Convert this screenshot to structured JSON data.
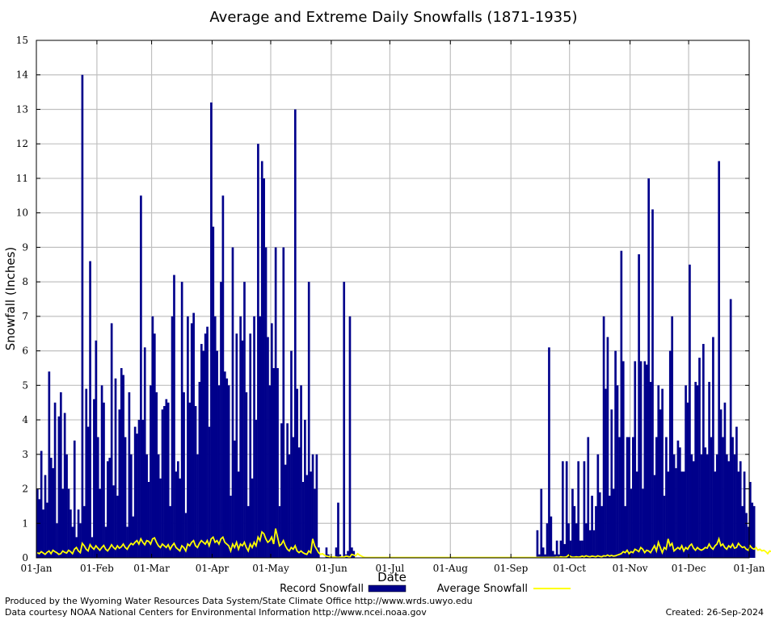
{
  "chart_data": {
    "type": "bar",
    "title": "Average and Extreme Daily Snowfalls (1871-1935)",
    "xlabel": "Date",
    "ylabel": "Snowfall (Inches)",
    "ylim": [
      0,
      15
    ],
    "yticks": [
      "0",
      "1",
      "2",
      "3",
      "4",
      "5",
      "6",
      "7",
      "8",
      "9",
      "10",
      "11",
      "12",
      "13",
      "14",
      "15"
    ],
    "xticks": [
      "01-Jan",
      "01-Feb",
      "01-Mar",
      "01-Apr",
      "01-May",
      "01-Jun",
      "01-Jul",
      "01-Aug",
      "01-Sep",
      "01-Oct",
      "01-Nov",
      "01-Dec",
      "01-Jan"
    ],
    "xtick_days": [
      1,
      32,
      60,
      91,
      121,
      152,
      182,
      213,
      244,
      274,
      305,
      335,
      366
    ],
    "xlim_days": [
      1,
      366
    ],
    "grid": true,
    "legend": "bottom-center",
    "series": [
      {
        "name": "Record Snowfall",
        "kind": "bar",
        "color": "#00008b",
        "x_start_day": 1,
        "values": [
          2.0,
          1.7,
          3.1,
          1.4,
          2.4,
          1.6,
          5.4,
          2.9,
          2.6,
          4.5,
          1.0,
          4.1,
          4.8,
          2.0,
          4.2,
          3.0,
          2.0,
          1.4,
          0.9,
          3.4,
          0.6,
          1.4,
          1.0,
          14.0,
          1.5,
          4.9,
          3.8,
          8.6,
          0.6,
          4.6,
          6.3,
          3.5,
          2.0,
          5.0,
          4.5,
          0.9,
          2.8,
          2.9,
          6.8,
          2.1,
          5.2,
          1.8,
          4.3,
          5.5,
          5.3,
          3.5,
          0.9,
          4.8,
          3.0,
          1.2,
          3.8,
          3.6,
          4.0,
          10.5,
          4.0,
          6.1,
          3.0,
          2.2,
          5.0,
          7.0,
          6.5,
          4.8,
          3.0,
          2.3,
          4.3,
          4.4,
          4.6,
          4.5,
          1.5,
          7.0,
          8.2,
          2.5,
          2.8,
          2.3,
          8.0,
          4.8,
          1.3,
          7.0,
          4.5,
          6.8,
          7.1,
          4.4,
          3.0,
          5.1,
          6.2,
          6.0,
          6.5,
          6.7,
          3.8,
          13.2,
          9.6,
          7.0,
          6.0,
          5.0,
          8.0,
          10.5,
          5.4,
          5.2,
          5.0,
          1.8,
          9.0,
          3.4,
          6.5,
          2.5,
          7.0,
          6.3,
          8.0,
          4.8,
          1.5,
          6.5,
          2.3,
          7.0,
          4.0,
          12.0,
          7.0,
          11.5,
          11.0,
          9.0,
          6.4,
          5.0,
          6.8,
          5.5,
          9.0,
          5.5,
          1.5,
          3.9,
          9.0,
          2.7,
          3.9,
          3.0,
          6.0,
          3.5,
          13.0,
          4.9,
          3.2,
          5.0,
          2.2,
          4.0,
          2.4,
          8.0,
          2.5,
          3.0,
          2.0,
          3.0,
          0.3,
          0.0,
          0.0,
          0.0,
          0.3,
          0.1,
          0.0,
          0.0,
          0.0,
          0.3,
          1.6,
          0.1,
          0.0,
          8.0,
          0.1,
          0.2,
          7.0,
          0.3,
          0.2,
          0.0,
          0.0,
          0.0,
          0.0,
          0.0,
          0.0,
          0.0,
          0.0,
          0.0,
          0.0,
          0.0,
          0.0,
          0.0,
          0.0,
          0.0,
          0.0,
          0.0,
          0.0,
          0.0,
          0.0,
          0.0,
          0.0,
          0.0,
          0.0,
          0.0,
          0.0,
          0.0,
          0.0,
          0.0,
          0.0,
          0.0,
          0.0,
          0.0,
          0.0,
          0.0,
          0.0,
          0.0,
          0.0,
          0.0,
          0.0,
          0.0,
          0.0,
          0.0,
          0.0,
          0.0,
          0.0,
          0.0,
          0.0,
          0.0,
          0.0,
          0.0,
          0.0,
          0.0,
          0.0,
          0.0,
          0.0,
          0.0,
          0.0,
          0.0,
          0.0,
          0.0,
          0.0,
          0.0,
          0.0,
          0.0,
          0.0,
          0.0,
          0.0,
          0.0,
          0.0,
          0.0,
          0.0,
          0.0,
          0.0,
          0.0,
          0.0,
          0.0,
          0.0,
          0.0,
          0.0,
          0.0,
          0.0,
          0.0,
          0.0,
          0.0,
          0.0,
          0.0,
          0.0,
          0.0,
          0.0,
          0.0,
          0.0,
          0.0,
          0.8,
          0.1,
          2.0,
          0.3,
          0.1,
          1.0,
          6.1,
          1.2,
          0.2,
          0.1,
          0.5,
          0.1,
          0.5,
          2.8,
          0.4,
          2.8,
          1.0,
          0.5,
          2.0,
          1.5,
          1.0,
          2.8,
          0.5,
          0.5,
          2.8,
          1.0,
          3.5,
          0.8,
          1.8,
          0.8,
          1.5,
          3.0,
          1.9,
          1.5,
          7.0,
          4.9,
          6.4,
          1.8,
          4.3,
          2.0,
          6.0,
          5.0,
          3.5,
          8.9,
          5.7,
          1.5,
          3.5,
          3.5,
          2.0,
          3.5,
          5.7,
          2.5,
          8.8,
          5.7,
          2.0,
          5.7,
          5.6,
          11.0,
          5.1,
          10.1,
          2.4,
          3.5,
          5.0,
          4.3,
          4.9,
          1.8,
          3.5,
          2.5,
          6.0,
          7.0,
          3.0,
          2.6,
          3.4,
          3.2,
          2.5,
          2.5,
          5.0,
          4.5,
          8.5,
          3.0,
          2.8,
          5.1,
          5.0,
          5.8,
          3.0,
          6.2,
          3.2,
          3.0,
          5.1,
          3.5,
          6.4,
          2.5,
          3.0,
          11.5,
          4.3,
          3.5,
          4.5,
          3.0,
          2.8,
          7.5,
          3.5,
          3.0,
          3.8,
          2.5,
          2.8,
          1.5,
          2.5,
          1.3,
          0.9,
          2.2,
          1.6,
          1.5
        ]
      },
      {
        "name": "Average Snowfall",
        "kind": "line",
        "color": "#ffff00",
        "x_start_day": 1,
        "values": [
          0.15,
          0.12,
          0.18,
          0.14,
          0.1,
          0.16,
          0.2,
          0.12,
          0.22,
          0.18,
          0.15,
          0.1,
          0.12,
          0.2,
          0.16,
          0.14,
          0.22,
          0.18,
          0.12,
          0.25,
          0.3,
          0.2,
          0.15,
          0.42,
          0.35,
          0.25,
          0.2,
          0.38,
          0.3,
          0.25,
          0.35,
          0.28,
          0.22,
          0.3,
          0.36,
          0.25,
          0.2,
          0.28,
          0.38,
          0.3,
          0.25,
          0.35,
          0.28,
          0.32,
          0.4,
          0.3,
          0.25,
          0.35,
          0.42,
          0.38,
          0.45,
          0.5,
          0.4,
          0.55,
          0.45,
          0.38,
          0.5,
          0.48,
          0.4,
          0.55,
          0.58,
          0.45,
          0.35,
          0.3,
          0.4,
          0.35,
          0.3,
          0.38,
          0.25,
          0.35,
          0.42,
          0.3,
          0.25,
          0.2,
          0.35,
          0.3,
          0.2,
          0.4,
          0.35,
          0.45,
          0.5,
          0.35,
          0.3,
          0.42,
          0.5,
          0.45,
          0.4,
          0.5,
          0.35,
          0.55,
          0.6,
          0.45,
          0.5,
          0.4,
          0.55,
          0.6,
          0.45,
          0.4,
          0.35,
          0.2,
          0.4,
          0.3,
          0.45,
          0.25,
          0.4,
          0.35,
          0.45,
          0.3,
          0.2,
          0.4,
          0.3,
          0.45,
          0.35,
          0.6,
          0.5,
          0.75,
          0.7,
          0.55,
          0.45,
          0.5,
          0.6,
          0.4,
          0.85,
          0.6,
          0.35,
          0.4,
          0.5,
          0.35,
          0.25,
          0.2,
          0.3,
          0.25,
          0.35,
          0.2,
          0.15,
          0.2,
          0.15,
          0.12,
          0.1,
          0.2,
          0.15,
          0.55,
          0.35,
          0.25,
          0.15,
          0.1,
          0.12,
          0.08,
          0.05,
          0.04,
          0.03,
          0.02,
          0.03,
          0.02,
          0.01,
          0.02,
          0.03,
          0.02,
          0.05,
          0.04,
          0.02,
          0.1,
          0.08,
          0.06,
          0.12,
          0.08,
          0.05,
          0.02,
          0.01,
          0.01,
          0.01,
          0.01,
          0.01,
          0.01,
          0.01,
          0.01,
          0.01,
          0.01,
          0.01,
          0.01,
          0.01,
          0.01,
          0.01,
          0.01,
          0.01,
          0.01,
          0.01,
          0.01,
          0.01,
          0.01,
          0.01,
          0.01,
          0.01,
          0.01,
          0.01,
          0.01,
          0.01,
          0.01,
          0.01,
          0.01,
          0.01,
          0.01,
          0.01,
          0.01,
          0.01,
          0.01,
          0.01,
          0.01,
          0.01,
          0.01,
          0.01,
          0.01,
          0.01,
          0.01,
          0.01,
          0.01,
          0.01,
          0.01,
          0.01,
          0.01,
          0.01,
          0.01,
          0.01,
          0.01,
          0.01,
          0.01,
          0.01,
          0.01,
          0.01,
          0.01,
          0.01,
          0.01,
          0.01,
          0.01,
          0.01,
          0.01,
          0.01,
          0.01,
          0.01,
          0.01,
          0.01,
          0.01,
          0.01,
          0.01,
          0.01,
          0.01,
          0.01,
          0.01,
          0.01,
          0.01,
          0.01,
          0.01,
          0.01,
          0.01,
          0.01,
          0.01,
          0.01,
          0.01,
          0.01,
          0.01,
          0.01,
          0.01,
          0.01,
          0.01,
          0.01,
          0.01,
          0.02,
          0.01,
          0.03,
          0.02,
          0.02,
          0.03,
          0.08,
          0.04,
          0.02,
          0.02,
          0.03,
          0.02,
          0.03,
          0.05,
          0.03,
          0.06,
          0.04,
          0.03,
          0.05,
          0.04,
          0.03,
          0.06,
          0.04,
          0.03,
          0.06,
          0.05,
          0.08,
          0.05,
          0.07,
          0.05,
          0.06,
          0.08,
          0.1,
          0.12,
          0.18,
          0.15,
          0.22,
          0.12,
          0.18,
          0.15,
          0.25,
          0.22,
          0.18,
          0.3,
          0.25,
          0.15,
          0.22,
          0.2,
          0.15,
          0.25,
          0.35,
          0.2,
          0.45,
          0.3,
          0.15,
          0.3,
          0.25,
          0.55,
          0.35,
          0.42,
          0.2,
          0.25,
          0.3,
          0.25,
          0.35,
          0.2,
          0.3,
          0.25,
          0.35,
          0.4,
          0.28,
          0.22,
          0.3,
          0.25,
          0.22,
          0.25,
          0.3,
          0.28,
          0.4,
          0.3,
          0.25,
          0.35,
          0.4,
          0.55,
          0.35,
          0.4,
          0.3,
          0.25,
          0.35,
          0.3,
          0.4,
          0.28,
          0.3,
          0.42,
          0.35,
          0.3,
          0.32,
          0.25,
          0.22,
          0.35,
          0.28,
          0.25,
          0.3,
          0.22,
          0.25,
          0.2,
          0.22,
          0.18,
          0.12,
          0.2,
          0.18,
          0.15
        ]
      }
    ],
    "notes_left": [
      "Produced by the Wyoming Water Resources Data System/State Climate Office http://www.wrds.uwyo.edu",
      "Data courtesy NOAA National Centers for Environmental Information http://www.ncei.noaa.gov"
    ],
    "created": "Created:  26-Sep-2024"
  }
}
